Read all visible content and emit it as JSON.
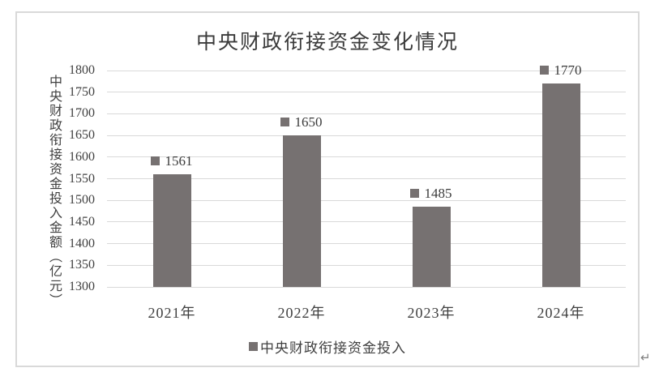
{
  "page": {
    "return_mark": "↵"
  },
  "chart": {
    "title": "中央财政衔接资金变化情况",
    "y_axis_title": "中央财政衔接资金投入金额（亿元）",
    "legend_label": "中央财政衔接资金投入",
    "colors": {
      "bar": "#767171",
      "gridline": "#d9d9d9",
      "border": "#d9d9d9",
      "text": "#404040",
      "title": "#3b3b3b",
      "return_mark": "#7f7f7f"
    }
  },
  "chart_data": {
    "type": "bar",
    "title": "中央财政衔接资金变化情况",
    "categories": [
      "2021年",
      "2022年",
      "2023年",
      "2024年"
    ],
    "series": [
      {
        "name": "中央财政衔接资金投入",
        "values": [
          1561,
          1650,
          1485,
          1770
        ]
      }
    ],
    "data_labels": [
      "1561",
      "1650",
      "1485",
      "1770"
    ],
    "xlabel": "",
    "ylabel": "中央财政衔接资金投入金额（亿元）",
    "ylim": [
      1300,
      1800
    ],
    "yticks": [
      1300,
      1350,
      1400,
      1450,
      1500,
      1550,
      1600,
      1650,
      1700,
      1750,
      1800
    ],
    "grid": true,
    "legend_position": "bottom",
    "bar_color": "#767171"
  }
}
